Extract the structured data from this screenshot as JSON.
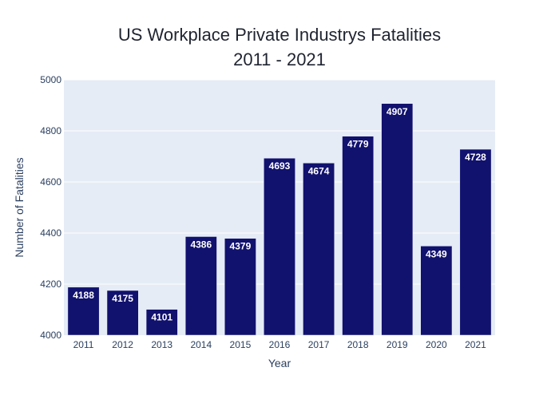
{
  "chart_data": {
    "type": "bar",
    "title": "US Workplace Private Industrys Fatalities",
    "subtitle": "2011 - 2021",
    "xlabel": "Year",
    "ylabel": "Number of Fatalities",
    "categories": [
      "2011",
      "2012",
      "2013",
      "2014",
      "2015",
      "2016",
      "2017",
      "2018",
      "2019",
      "2020",
      "2021"
    ],
    "values": [
      4188,
      4175,
      4101,
      4386,
      4379,
      4693,
      4674,
      4779,
      4907,
      4349,
      4728
    ],
    "ylim": [
      4000,
      5000
    ],
    "yticks": [
      "4000",
      "4200",
      "4400",
      "4600",
      "4800",
      "5000"
    ],
    "grid": true,
    "data_labels": true,
    "colors": {
      "bar": "#11116e",
      "plot_background": "#e5ecf6",
      "gridline": "#ffffff",
      "label": "#ffffff"
    }
  }
}
